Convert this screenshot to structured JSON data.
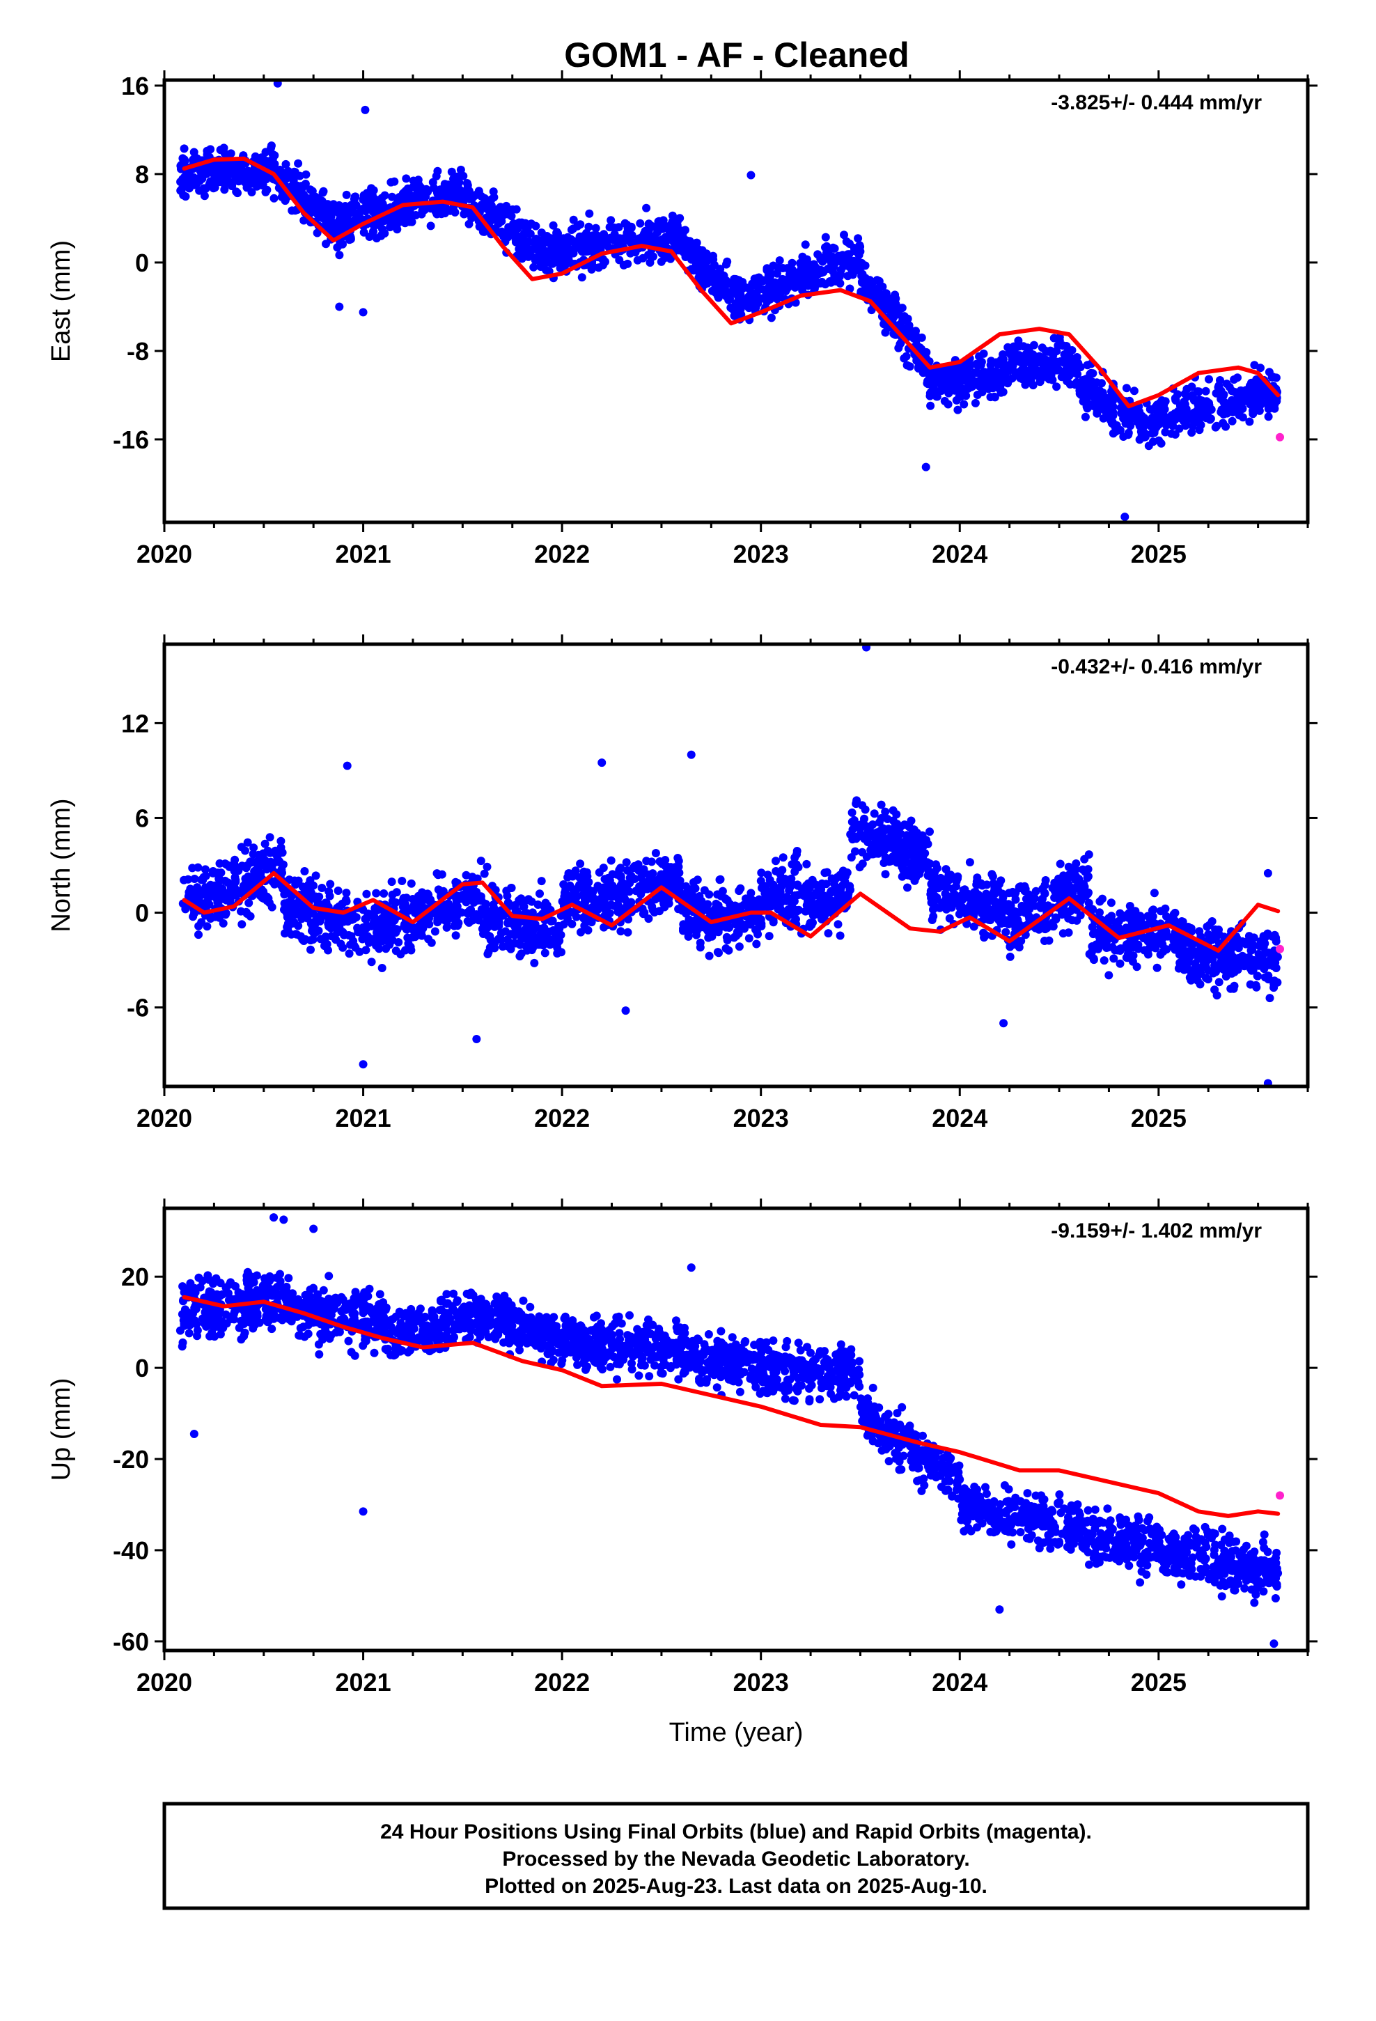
{
  "title": "GOM1  - AF - Cleaned",
  "colors": {
    "final": "#0000ff",
    "rapid": "#ff22cc",
    "model": "#ff0000",
    "axis": "#000000"
  },
  "footer": {
    "line1": "24 Hour Positions Using Final Orbits (blue) and Rapid Orbits (magenta).",
    "line2": "Processed by the Nevada Geodetic Laboratory.",
    "line3": "Plotted on 2025-Aug-23. Last data on 2025-Aug-10."
  },
  "chart_data": [
    {
      "type": "scatter",
      "component": "east",
      "ylabel": "East (mm)",
      "xlabel": "",
      "rate_label": "-3.825+/- 0.444 mm/yr",
      "xlim": [
        2020,
        2025.75
      ],
      "ylim": [
        -23.5,
        16.5
      ],
      "xticks": [
        2020,
        2021,
        2022,
        2023,
        2024,
        2025
      ],
      "yticks": [
        16,
        8,
        0,
        -8,
        -16
      ],
      "model": {
        "x": [
          2020.1,
          2020.25,
          2020.4,
          2020.55,
          2020.7,
          2020.85,
          2021.0,
          2021.2,
          2021.4,
          2021.55,
          2021.7,
          2021.85,
          2022.0,
          2022.2,
          2022.4,
          2022.55,
          2022.7,
          2022.85,
          2023.0,
          2023.2,
          2023.4,
          2023.55,
          2023.7,
          2023.85,
          2024.0,
          2024.2,
          2024.4,
          2024.55,
          2024.7,
          2024.85,
          2025.0,
          2025.2,
          2025.4,
          2025.5,
          2025.6
        ],
        "y": [
          8.5,
          9.3,
          9.4,
          8.0,
          4.5,
          2.0,
          3.5,
          5.2,
          5.5,
          5.0,
          1.5,
          -1.5,
          -1.0,
          0.8,
          1.5,
          1.0,
          -2.5,
          -5.5,
          -4.5,
          -3.0,
          -2.5,
          -3.5,
          -6.5,
          -9.5,
          -9.0,
          -6.5,
          -6.0,
          -6.5,
          -9.5,
          -13.0,
          -12.0,
          -10.0,
          -9.5,
          -10.0,
          -12.0
        ]
      },
      "segments": [
        {
          "x0": 2020.08,
          "x1": 2020.55,
          "start": 8.0,
          "end": 8.5,
          "amp": 1.6,
          "n": 260
        },
        {
          "x0": 2020.55,
          "x1": 2020.9,
          "start": 8.0,
          "end": 3.0,
          "amp": 1.8,
          "n": 180
        },
        {
          "x0": 2020.9,
          "x1": 2021.5,
          "start": 3.5,
          "end": 6.5,
          "amp": 1.8,
          "n": 300
        },
        {
          "x0": 2021.5,
          "x1": 2021.95,
          "start": 6.0,
          "end": 0.5,
          "amp": 1.8,
          "n": 200
        },
        {
          "x0": 2021.95,
          "x1": 2022.6,
          "start": 1.0,
          "end": 2.5,
          "amp": 1.8,
          "n": 300
        },
        {
          "x0": 2022.6,
          "x1": 2022.95,
          "start": 1.5,
          "end": -4.0,
          "amp": 1.6,
          "n": 180
        },
        {
          "x0": 2022.95,
          "x1": 2023.5,
          "start": -3.0,
          "end": 0.5,
          "amp": 1.8,
          "n": 240
        },
        {
          "x0": 2023.5,
          "x1": 2023.85,
          "start": -1.0,
          "end": -9.5,
          "amp": 1.8,
          "n": 180
        },
        {
          "x0": 2023.85,
          "x1": 2024.25,
          "start": -11.0,
          "end": -10.0,
          "amp": 1.8,
          "n": 200
        },
        {
          "x0": 2024.25,
          "x1": 2024.6,
          "start": -9.0,
          "end": -9.5,
          "amp": 1.6,
          "n": 180
        },
        {
          "x0": 2024.6,
          "x1": 2024.95,
          "start": -11.0,
          "end": -15.0,
          "amp": 2.0,
          "n": 180
        },
        {
          "x0": 2024.95,
          "x1": 2025.6,
          "start": -14.5,
          "end": -11.5,
          "amp": 1.8,
          "n": 280
        }
      ],
      "outliers": {
        "x": [
          2020.57,
          2021.01,
          2020.1,
          2022.95,
          2024.83,
          2023.83,
          2020.88,
          2021.0
        ],
        "y": [
          16.2,
          13.8,
          10.3,
          7.9,
          -23.0,
          -18.5,
          -4.0,
          -4.5
        ]
      },
      "rapid": {
        "x": [
          2025.61
        ],
        "y": [
          -15.8
        ]
      }
    },
    {
      "type": "scatter",
      "component": "north",
      "ylabel": "North (mm)",
      "xlabel": "",
      "rate_label": "-0.432+/- 0.416 mm/yr",
      "xlim": [
        2020,
        2025.75
      ],
      "ylim": [
        -11,
        17
      ],
      "xticks": [
        2020,
        2021,
        2022,
        2023,
        2024,
        2025
      ],
      "yticks": [
        12,
        6,
        0,
        -6
      ],
      "model": {
        "x": [
          2020.1,
          2020.2,
          2020.35,
          2020.55,
          2020.75,
          2020.9,
          2021.05,
          2021.25,
          2021.5,
          2021.6,
          2021.75,
          2021.9,
          2022.05,
          2022.25,
          2022.5,
          2022.75,
          2022.95,
          2023.05,
          2023.25,
          2023.5,
          2023.75,
          2023.9,
          2024.05,
          2024.25,
          2024.55,
          2024.8,
          2025.05,
          2025.3,
          2025.5,
          2025.6
        ],
        "y": [
          0.8,
          0.0,
          0.4,
          2.5,
          0.3,
          0.0,
          0.8,
          -0.6,
          1.8,
          1.9,
          -0.2,
          -0.4,
          0.5,
          -0.8,
          1.6,
          -0.6,
          0.0,
          0.0,
          -1.5,
          1.2,
          -1.0,
          -1.2,
          -0.3,
          -1.8,
          0.9,
          -1.6,
          -0.8,
          -2.4,
          0.5,
          0.1
        ]
      },
      "segments": [
        {
          "x0": 2020.08,
          "x1": 2020.6,
          "start": 0.5,
          "end": 3.0,
          "amp": 1.8,
          "n": 240
        },
        {
          "x0": 2020.6,
          "x1": 2021.0,
          "start": 0.5,
          "end": -1.0,
          "amp": 1.8,
          "n": 200
        },
        {
          "x0": 2021.0,
          "x1": 2021.6,
          "start": -1.0,
          "end": 1.0,
          "amp": 1.8,
          "n": 280
        },
        {
          "x0": 2021.6,
          "x1": 2022.0,
          "start": 0.0,
          "end": -1.5,
          "amp": 1.8,
          "n": 200
        },
        {
          "x0": 2022.0,
          "x1": 2022.6,
          "start": 0.5,
          "end": 2.0,
          "amp": 1.8,
          "n": 280
        },
        {
          "x0": 2022.6,
          "x1": 2023.0,
          "start": 0.0,
          "end": -0.5,
          "amp": 1.8,
          "n": 200
        },
        {
          "x0": 2023.0,
          "x1": 2023.45,
          "start": 1.0,
          "end": 1.0,
          "amp": 1.8,
          "n": 220
        },
        {
          "x0": 2023.45,
          "x1": 2023.85,
          "start": 5.5,
          "end": 3.5,
          "amp": 1.8,
          "n": 200
        },
        {
          "x0": 2023.85,
          "x1": 2024.25,
          "start": 1.5,
          "end": 0.0,
          "amp": 1.6,
          "n": 200
        },
        {
          "x0": 2024.25,
          "x1": 2024.65,
          "start": -0.5,
          "end": 1.5,
          "amp": 1.8,
          "n": 200
        },
        {
          "x0": 2024.65,
          "x1": 2025.1,
          "start": -1.5,
          "end": -1.0,
          "amp": 1.8,
          "n": 200
        },
        {
          "x0": 2025.1,
          "x1": 2025.6,
          "start": -2.5,
          "end": -3.0,
          "amp": 1.8,
          "n": 240
        }
      ],
      "outliers": {
        "x": [
          2023.53,
          2021.0,
          2025.55,
          2020.92,
          2022.2,
          2022.65,
          2021.57,
          2022.32,
          2024.22,
          2025.55
        ],
        "y": [
          16.8,
          -9.6,
          -10.8,
          9.3,
          9.5,
          10.0,
          -8.0,
          -6.2,
          -7.0,
          2.5
        ]
      },
      "rapid": {
        "x": [
          2025.61
        ],
        "y": [
          -2.3
        ]
      }
    },
    {
      "type": "scatter",
      "component": "up",
      "ylabel": "Up (mm)",
      "xlabel": "Time (year)",
      "rate_label": "-9.159+/- 1.402 mm/yr",
      "xlim": [
        2020,
        2025.75
      ],
      "ylim": [
        -62,
        35
      ],
      "xticks": [
        2020,
        2021,
        2022,
        2023,
        2024,
        2025
      ],
      "yticks": [
        20,
        0,
        -20,
        -40,
        -60
      ],
      "model": {
        "x": [
          2020.1,
          2020.3,
          2020.5,
          2020.7,
          2020.9,
          2021.1,
          2021.3,
          2021.55,
          2021.8,
          2022.0,
          2022.2,
          2022.5,
          2022.8,
          2023.0,
          2023.3,
          2023.5,
          2023.8,
          2024.0,
          2024.3,
          2024.5,
          2024.8,
          2025.0,
          2025.2,
          2025.35,
          2025.5,
          2025.6
        ],
        "y": [
          15.5,
          13.5,
          14.5,
          12.0,
          9.0,
          6.5,
          4.5,
          5.5,
          1.5,
          -0.5,
          -4.0,
          -3.5,
          -6.5,
          -8.5,
          -12.5,
          -13.0,
          -16.5,
          -18.5,
          -22.5,
          -22.5,
          -25.5,
          -27.5,
          -31.5,
          -32.5,
          -31.5,
          -32.0
        ]
      },
      "segments": [
        {
          "x0": 2020.08,
          "x1": 2020.6,
          "start": 12.0,
          "end": 16.0,
          "amp": 5.5,
          "n": 260
        },
        {
          "x0": 2020.6,
          "x1": 2021.1,
          "start": 13.0,
          "end": 10.0,
          "amp": 5.5,
          "n": 240
        },
        {
          "x0": 2021.1,
          "x1": 2021.6,
          "start": 7.0,
          "end": 12.0,
          "amp": 5.0,
          "n": 240
        },
        {
          "x0": 2021.6,
          "x1": 2022.0,
          "start": 12.0,
          "end": 6.0,
          "amp": 5.0,
          "n": 200
        },
        {
          "x0": 2022.0,
          "x1": 2022.6,
          "start": 6.0,
          "end": 4.0,
          "amp": 5.0,
          "n": 280
        },
        {
          "x0": 2022.6,
          "x1": 2023.0,
          "start": 3.0,
          "end": 0.0,
          "amp": 5.0,
          "n": 200
        },
        {
          "x0": 2023.0,
          "x1": 2023.5,
          "start": 0.0,
          "end": -2.0,
          "amp": 5.0,
          "n": 220
        },
        {
          "x0": 2023.5,
          "x1": 2024.0,
          "start": -10.0,
          "end": -25.0,
          "amp": 5.0,
          "n": 220
        },
        {
          "x0": 2024.0,
          "x1": 2024.6,
          "start": -30.0,
          "end": -35.0,
          "amp": 5.0,
          "n": 260
        },
        {
          "x0": 2024.6,
          "x1": 2025.1,
          "start": -36.0,
          "end": -40.0,
          "amp": 5.0,
          "n": 220
        },
        {
          "x0": 2025.1,
          "x1": 2025.6,
          "start": -41.0,
          "end": -45.0,
          "amp": 5.5,
          "n": 240
        }
      ],
      "outliers": {
        "x": [
          2020.55,
          2020.6,
          2020.75,
          2021.0,
          2020.15,
          2022.65,
          2025.58,
          2024.2
        ],
        "y": [
          33.0,
          32.5,
          30.5,
          -31.5,
          -14.5,
          22.0,
          -60.5,
          -53.0
        ]
      },
      "rapid": {
        "x": [
          2025.61
        ],
        "y": [
          -28.0
        ]
      }
    }
  ]
}
